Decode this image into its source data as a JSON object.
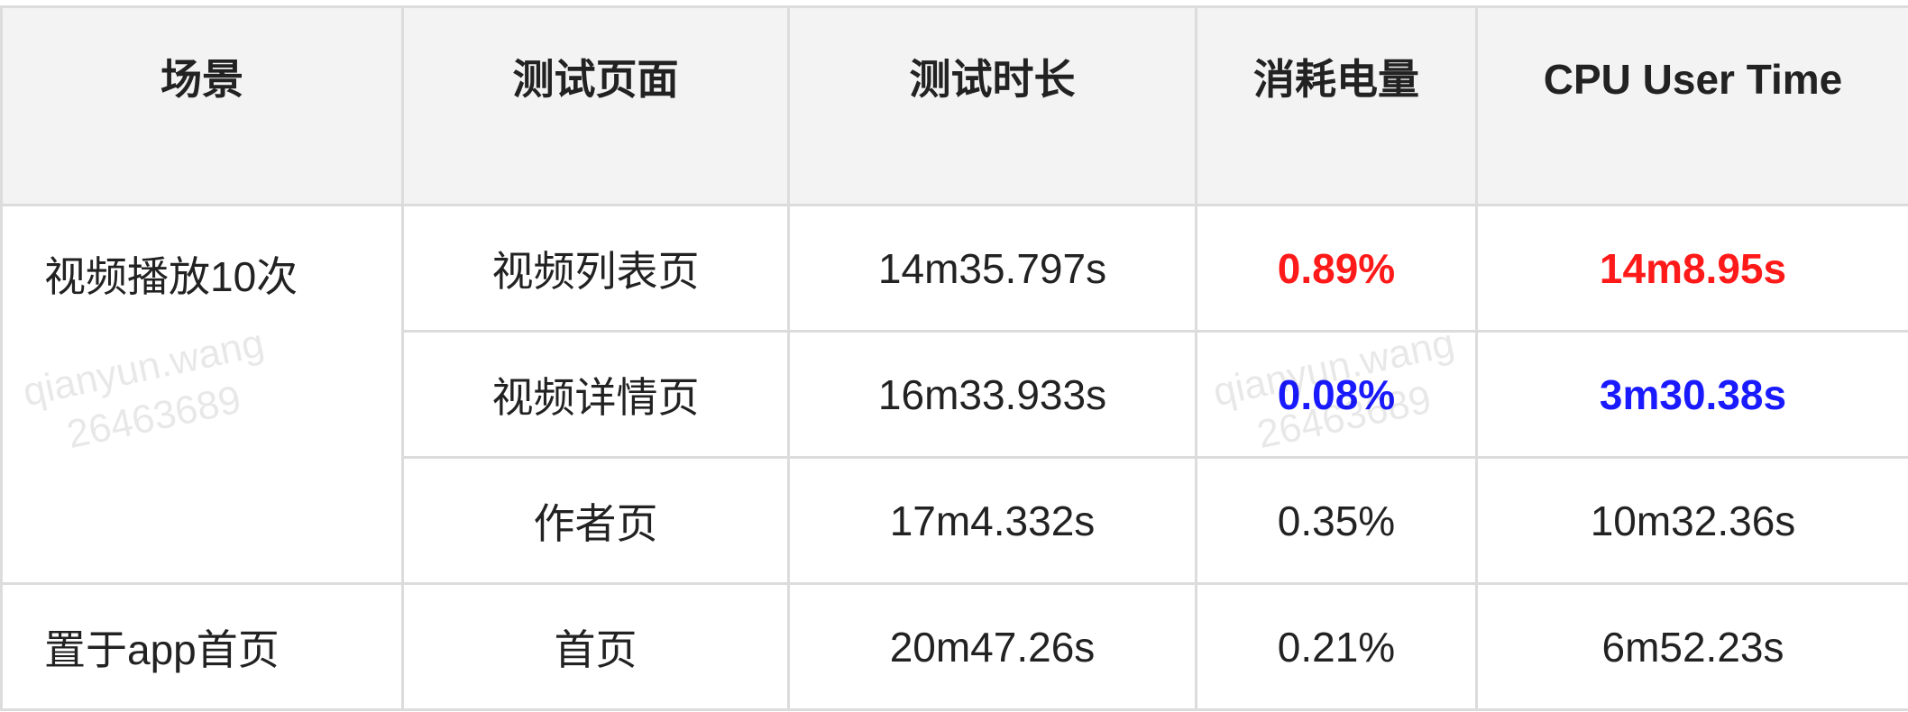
{
  "headers": [
    "场景",
    "测试页面",
    "测试时长",
    "消耗电量",
    "CPU User Time"
  ],
  "rows": [
    {
      "scene": "视频播放10次",
      "page": "视频列表页",
      "duration": "14m35.797s",
      "power": "0.89%",
      "cpu": "14m8.95s",
      "highlight": "red"
    },
    {
      "page": "视频详情页",
      "duration": "16m33.933s",
      "power": "0.08%",
      "cpu": "3m30.38s",
      "highlight": "blue"
    },
    {
      "page": "作者页",
      "duration": "17m4.332s",
      "power": "0.35%",
      "cpu": "10m32.36s"
    },
    {
      "scene": "置于app首页",
      "page": "首页",
      "duration": "20m47.26s",
      "power": "0.21%",
      "cpu": "6m52.23s"
    }
  ],
  "watermark": {
    "line1": "qianyun.wang",
    "line2": "26463689"
  },
  "colors": {
    "red": "#ff1a1a",
    "blue": "#1a1aff",
    "header_bg": "#f3f3f3",
    "border": "#dcdcdc"
  }
}
